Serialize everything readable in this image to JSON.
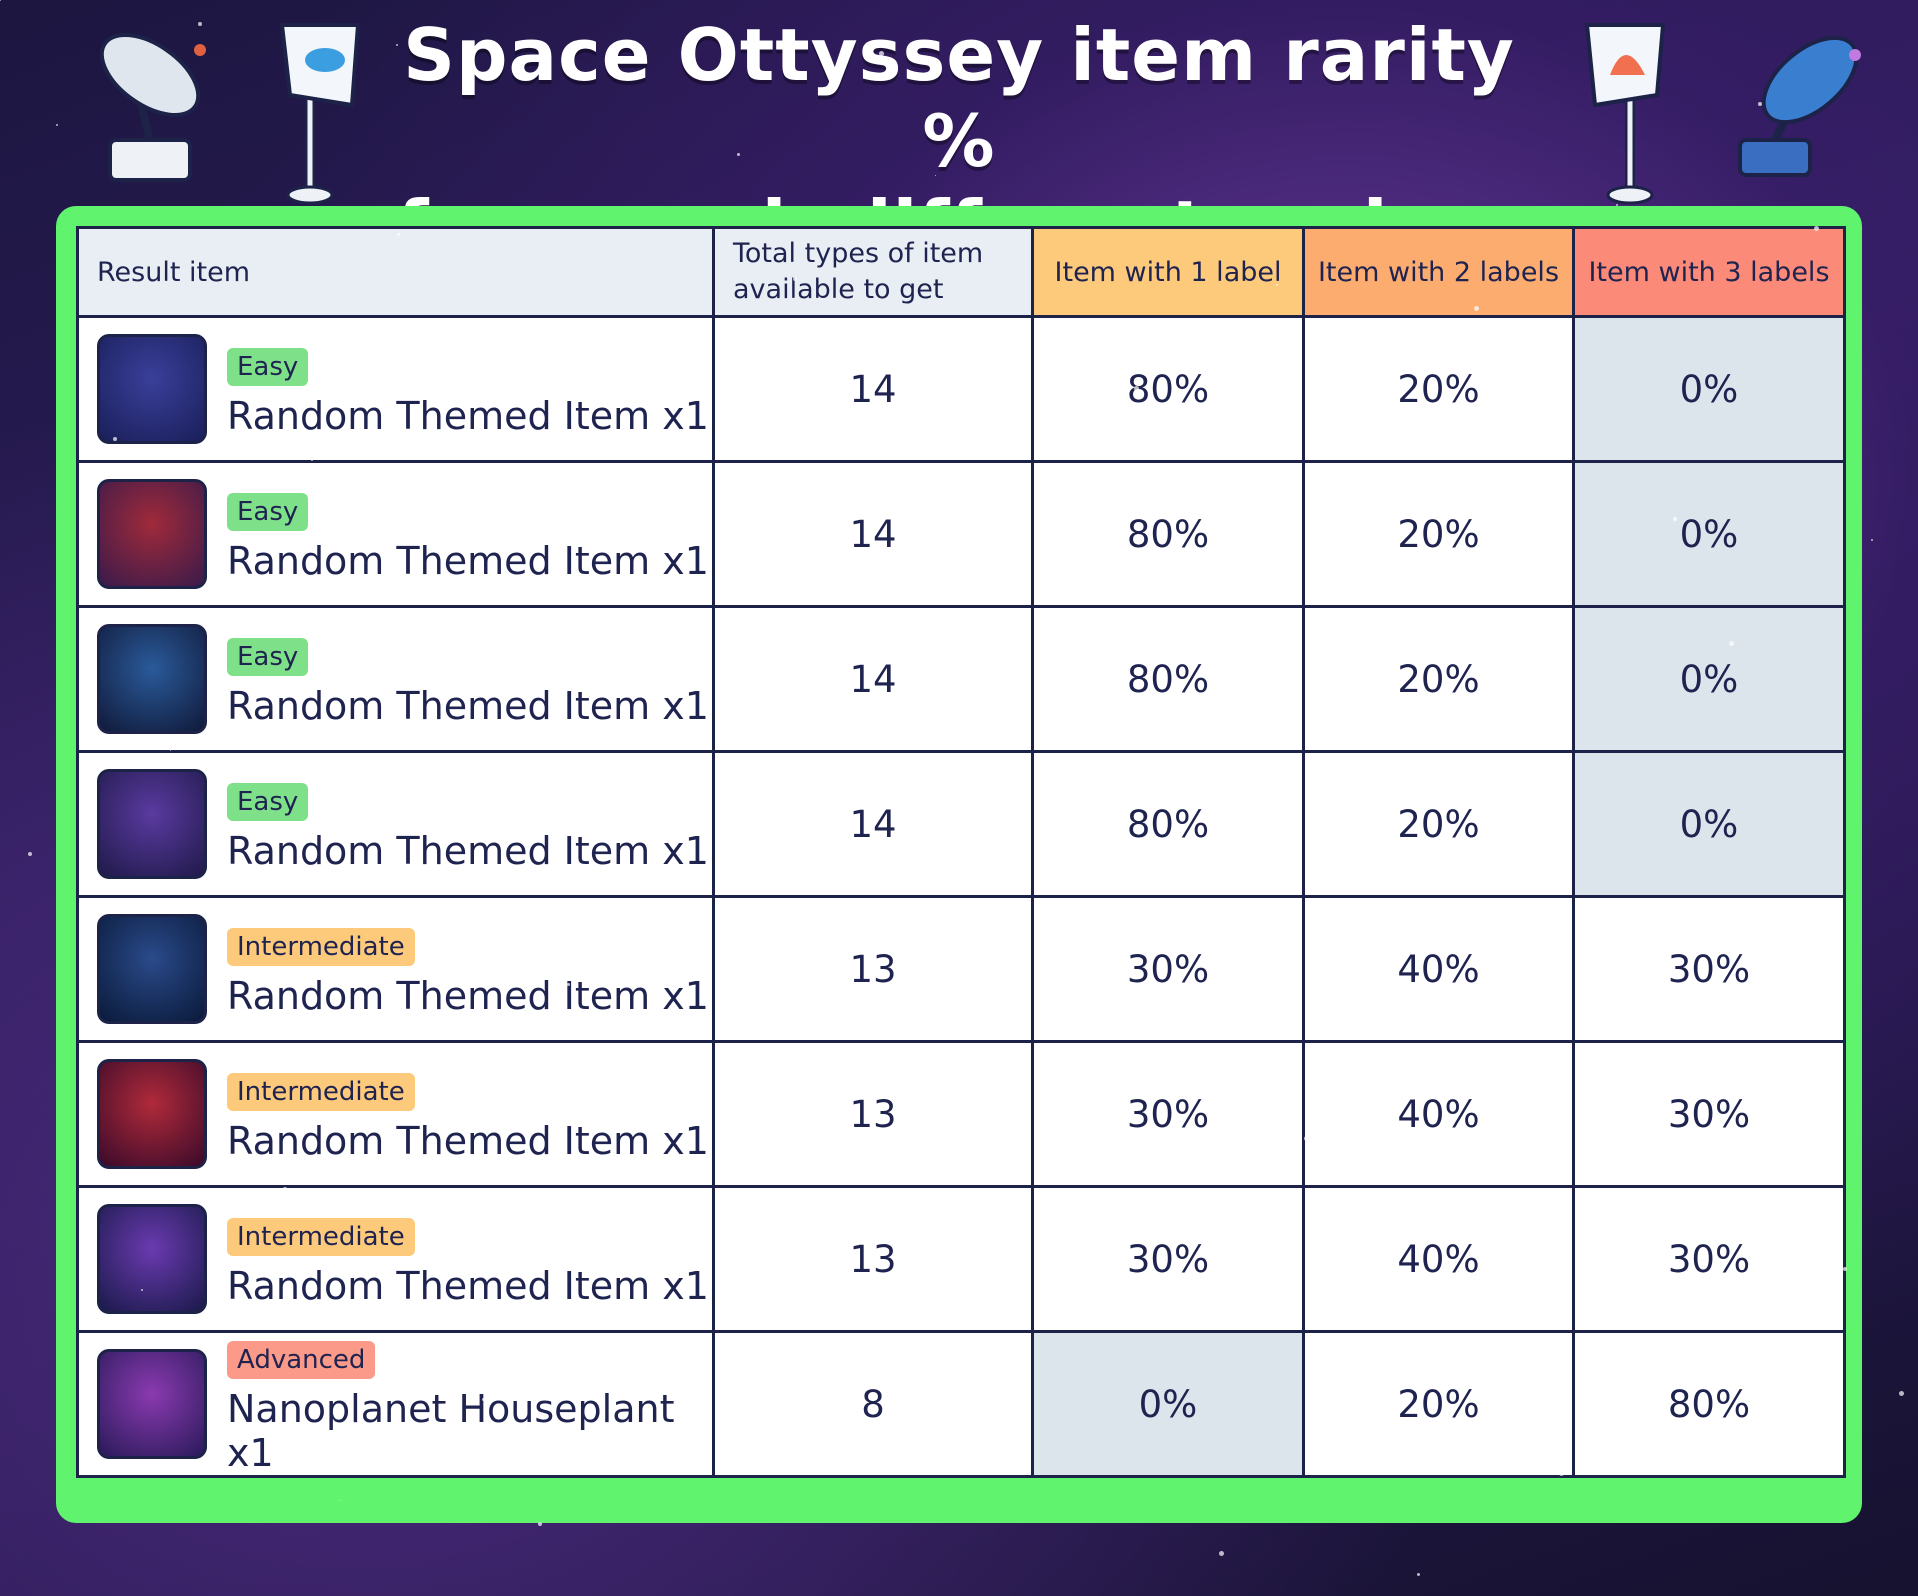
{
  "header": {
    "title": [
      "Space Ottyssey item rarity %",
      "from each different recipe:"
    ]
  },
  "table": {
    "columns": [
      {
        "label": "Result item",
        "color": "#e8eef3"
      },
      {
        "label": "Total types of item available to get",
        "color": "#e8eef3"
      },
      {
        "label": "Item with 1 label",
        "color": "#fdc97a"
      },
      {
        "label": "Item with 2 labels",
        "color": "#fdac70"
      },
      {
        "label": "Item with 3 labels",
        "color": "#fb8a78"
      }
    ],
    "rows": [
      {
        "difficulty": "Easy",
        "tag_color": "#7fe08a",
        "item": "Random Themed Item x1",
        "cells": [
          "14",
          "80%",
          "20%",
          "0%"
        ]
      },
      {
        "difficulty": "Easy",
        "tag_color": "#7fe08a",
        "item": "Random Themed Item x1",
        "cells": [
          "14",
          "80%",
          "20%",
          "0%"
        ]
      },
      {
        "difficulty": "Easy",
        "tag_color": "#7fe08a",
        "item": "Random Themed Item x1",
        "cells": [
          "14",
          "80%",
          "20%",
          "0%"
        ]
      },
      {
        "difficulty": "Easy",
        "tag_color": "#7fe08a",
        "item": "Random Themed Item x1",
        "cells": [
          "14",
          "80%",
          "20%",
          "0%"
        ]
      },
      {
        "difficulty": "Intermediate",
        "tag_color": "#fdc97a",
        "item": "Random Themed Item x1",
        "cells": [
          "13",
          "30%",
          "40%",
          "30%"
        ]
      },
      {
        "difficulty": "Intermediate",
        "tag_color": "#fdc97a",
        "item": "Random Themed Item x1",
        "cells": [
          "13",
          "30%",
          "40%",
          "30%"
        ]
      },
      {
        "difficulty": "Intermediate",
        "tag_color": "#fdc97a",
        "item": "Random Themed Item x1",
        "cells": [
          "13",
          "30%",
          "40%",
          "30%"
        ]
      },
      {
        "difficulty": "Advanced",
        "tag_color": "#fb9a88",
        "item": "Nanoplanet Houseplant x1",
        "cells": [
          "8",
          "0%",
          "20%",
          "80%"
        ]
      }
    ]
  }
}
